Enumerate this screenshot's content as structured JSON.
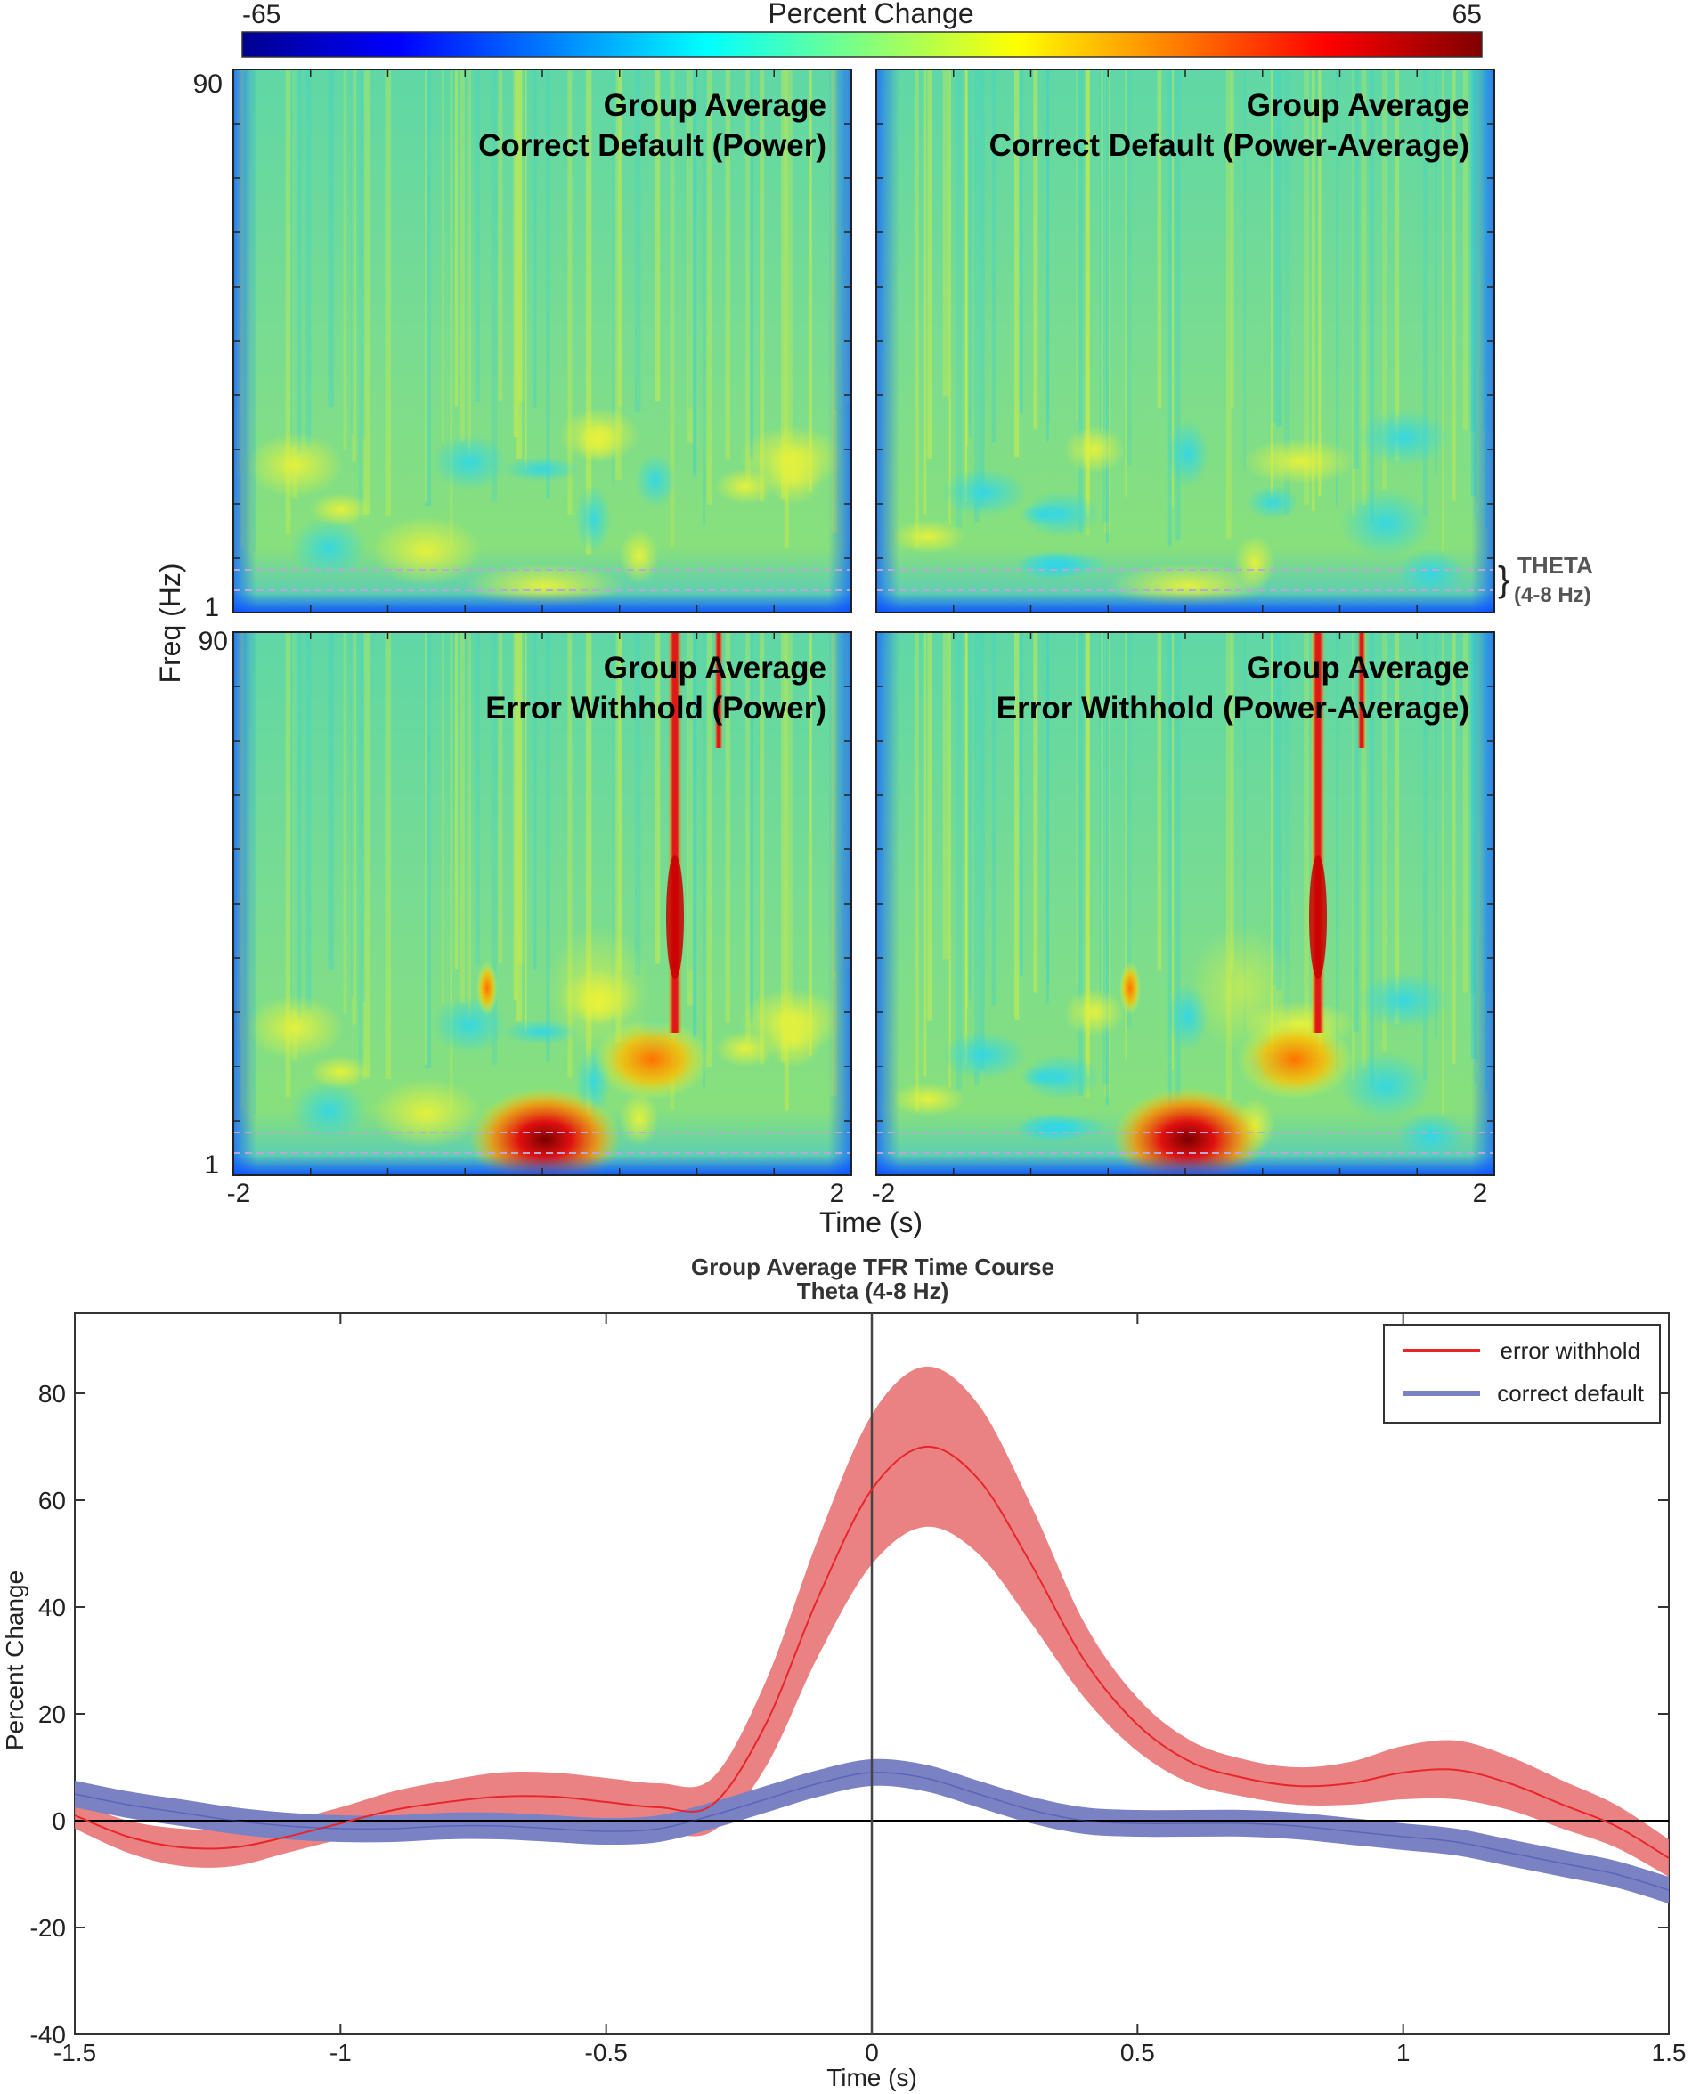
{
  "colorbar": {
    "label": "Percent Change",
    "min_label": "-65",
    "max_label": "65",
    "min": -65,
    "max": 65,
    "stops": [
      "#00008f",
      "#0000ff",
      "#0080ff",
      "#00ffff",
      "#80ff80",
      "#ffff00",
      "#ff8000",
      "#ff0000",
      "#800000"
    ]
  },
  "spectrogram": {
    "ylabel": "Freq (Hz)",
    "y_top_label": "90",
    "y_bottom_label": "1",
    "x_left_label": "-2",
    "x_right_label": "2",
    "xlabel": "Time (s)",
    "theta_label": "THETA",
    "theta_range_label": "(4-8 Hz)",
    "panels": [
      {
        "line1": "Group Average",
        "line2": "Correct Default (Power)"
      },
      {
        "line1": "Group Average",
        "line2": "Correct Default (Power-Average)"
      },
      {
        "line1": "Group Average",
        "line2": "Error Withhold (Power)"
      },
      {
        "line1": "Group Average",
        "line2": "Error Withhold (Power-Average)"
      }
    ]
  },
  "chart_data": {
    "type": "line",
    "title": "Group Average TFR Time Course",
    "subtitle": "Theta (4-8 Hz)",
    "xlabel": "Time (s)",
    "ylabel": "Percent Change",
    "xlim": [
      -1.5,
      1.5
    ],
    "ylim": [
      -40,
      95
    ],
    "xticks": [
      -1.5,
      -1,
      -0.5,
      0,
      0.5,
      1,
      1.5
    ],
    "xtick_labels": [
      "-1.5",
      "-1",
      "-0.5",
      "0",
      "0.5",
      "1",
      "1.5"
    ],
    "yticks": [
      -40,
      -20,
      0,
      20,
      40,
      60,
      80
    ],
    "ytick_labels": [
      "-40",
      "-20",
      "0",
      "20",
      "40",
      "60",
      "80"
    ],
    "legend_position": "top-right",
    "x": [
      -1.5,
      -1.4,
      -1.3,
      -1.2,
      -1.1,
      -1.0,
      -0.9,
      -0.8,
      -0.7,
      -0.6,
      -0.5,
      -0.4,
      -0.3,
      -0.2,
      -0.1,
      0.0,
      0.1,
      0.2,
      0.3,
      0.4,
      0.5,
      0.6,
      0.7,
      0.8,
      0.9,
      1.0,
      1.1,
      1.2,
      1.3,
      1.4,
      1.5
    ],
    "series": [
      {
        "name": "error withhold",
        "color": "#e8262a",
        "band_color": "#e87476",
        "values": [
          1,
          -3,
          -5,
          -5,
          -3,
          -0.5,
          2,
          3.5,
          4.5,
          4.5,
          3.5,
          2.5,
          3,
          18,
          42,
          62,
          70,
          64,
          48,
          30,
          18,
          11,
          8,
          6.5,
          7,
          9,
          9.5,
          7,
          3,
          -1,
          -7
        ],
        "band_halfwidth": [
          2.5,
          3,
          3.5,
          3.5,
          3,
          3,
          3.5,
          4,
          4.5,
          4.5,
          4.5,
          4.5,
          5,
          8,
          11,
          14,
          15,
          14,
          11,
          7,
          5,
          4,
          3.5,
          3.5,
          4,
          5,
          5.5,
          5,
          4.5,
          4,
          3.5
        ]
      },
      {
        "name": "correct default",
        "color": "#3a47b0",
        "band_color": "#7a82c3",
        "values": [
          5,
          3,
          1.5,
          0,
          -1,
          -1.5,
          -1.5,
          -1,
          -1,
          -1.5,
          -2,
          -1.5,
          1,
          4,
          7,
          9,
          8,
          5,
          2,
          0,
          -0.5,
          -0.5,
          -0.5,
          -1,
          -2,
          -3,
          -4,
          -6,
          -8,
          -10,
          -13
        ],
        "band_halfwidth": [
          2.5,
          2.5,
          2.5,
          2.5,
          2.5,
          2.5,
          2.5,
          2.5,
          2.5,
          2.5,
          2.5,
          2.5,
          2.5,
          2.5,
          2.5,
          2.5,
          2.5,
          2.5,
          2.5,
          2.5,
          2.5,
          2.5,
          2.5,
          2.5,
          2.5,
          2.5,
          2.5,
          2.5,
          2.5,
          2.5,
          2.5
        ]
      }
    ]
  }
}
